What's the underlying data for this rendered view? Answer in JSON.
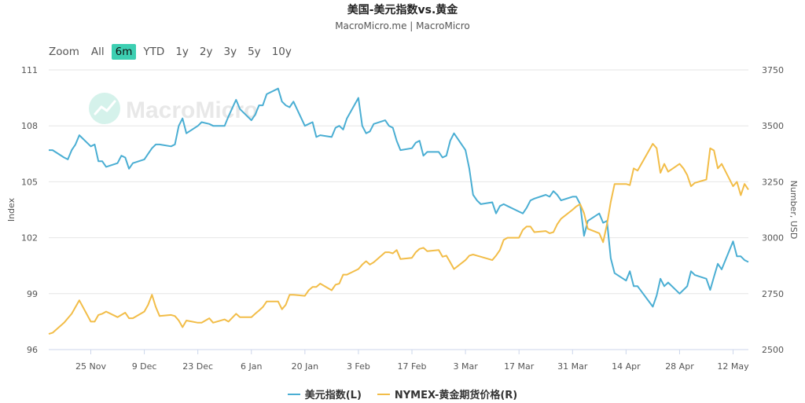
{
  "title": "美国-美元指数vs.黄金",
  "subtitle": "MacroMicro.me | MacroMicro",
  "zoom": {
    "label": "Zoom",
    "buttons": [
      "All",
      "6m",
      "YTD",
      "1y",
      "2y",
      "3y",
      "5y",
      "10y"
    ],
    "active": "6m"
  },
  "watermark": "MacroMicro",
  "colors": {
    "dxy": "#4aaed3",
    "gold": "#f2bd48",
    "active_zoom": "#3dcfb2"
  },
  "legend": {
    "dxy": "美元指数(L)",
    "gold": "NYMEX-黄金期货价格(R)"
  },
  "chart_data": {
    "type": "line",
    "title": "美国-美元指数vs.黄金",
    "subtitle": "MacroMicro.me | MacroMicro",
    "x_range": [
      "2024-11-14",
      "2025-05-16"
    ],
    "x_ticks": [
      "25 Nov",
      "9 Dec",
      "23 Dec",
      "6 Jan",
      "20 Jan",
      "3 Feb",
      "17 Feb",
      "3 Mar",
      "17 Mar",
      "31 Mar",
      "14 Apr",
      "28 Apr",
      "12 May"
    ],
    "y_left": {
      "label": "Index",
      "range": [
        96,
        111
      ],
      "ticks": [
        96,
        99,
        102,
        105,
        108,
        111
      ]
    },
    "y_right": {
      "label": "Number, USD",
      "range": [
        2500,
        3750
      ],
      "ticks": [
        2500,
        2750,
        3000,
        3250,
        3500,
        3750
      ]
    },
    "grid": true,
    "legend_position": "bottom",
    "series": [
      {
        "name": "美元指数(L)",
        "axis": "left",
        "points": [
          [
            "2024-11-14",
            106.7
          ],
          [
            "2024-11-15",
            106.7
          ],
          [
            "2024-11-18",
            106.3
          ],
          [
            "2024-11-19",
            106.2
          ],
          [
            "2024-11-20",
            106.7
          ],
          [
            "2024-11-21",
            107.0
          ],
          [
            "2024-11-22",
            107.5
          ],
          [
            "2024-11-25",
            106.9
          ],
          [
            "2024-11-26",
            107.0
          ],
          [
            "2024-11-27",
            106.1
          ],
          [
            "2024-11-28",
            106.1
          ],
          [
            "2024-11-29",
            105.8
          ],
          [
            "2024-12-02",
            106.0
          ],
          [
            "2024-12-03",
            106.4
          ],
          [
            "2024-12-04",
            106.3
          ],
          [
            "2024-12-05",
            105.7
          ],
          [
            "2024-12-06",
            106.0
          ],
          [
            "2024-12-09",
            106.2
          ],
          [
            "2024-12-10",
            106.5
          ],
          [
            "2024-12-11",
            106.8
          ],
          [
            "2024-12-12",
            107.0
          ],
          [
            "2024-12-13",
            107.0
          ],
          [
            "2024-12-16",
            106.9
          ],
          [
            "2024-12-17",
            107.0
          ],
          [
            "2024-12-18",
            108.0
          ],
          [
            "2024-12-19",
            108.4
          ],
          [
            "2024-12-20",
            107.6
          ],
          [
            "2024-12-23",
            108.0
          ],
          [
            "2024-12-24",
            108.2
          ],
          [
            "2024-12-26",
            108.1
          ],
          [
            "2024-12-27",
            108.0
          ],
          [
            "2024-12-30",
            108.0
          ],
          [
            "2024-12-31",
            108.5
          ],
          [
            "2025-01-02",
            109.4
          ],
          [
            "2025-01-03",
            108.9
          ],
          [
            "2025-01-06",
            108.3
          ],
          [
            "2025-01-07",
            108.6
          ],
          [
            "2025-01-08",
            109.1
          ],
          [
            "2025-01-09",
            109.1
          ],
          [
            "2025-01-10",
            109.7
          ],
          [
            "2025-01-13",
            110.0
          ],
          [
            "2025-01-14",
            109.3
          ],
          [
            "2025-01-15",
            109.1
          ],
          [
            "2025-01-16",
            109.0
          ],
          [
            "2025-01-17",
            109.3
          ],
          [
            "2025-01-20",
            108.0
          ],
          [
            "2025-01-21",
            108.1
          ],
          [
            "2025-01-22",
            108.2
          ],
          [
            "2025-01-23",
            107.4
          ],
          [
            "2025-01-24",
            107.5
          ],
          [
            "2025-01-27",
            107.4
          ],
          [
            "2025-01-28",
            107.9
          ],
          [
            "2025-01-29",
            108.0
          ],
          [
            "2025-01-30",
            107.8
          ],
          [
            "2025-01-31",
            108.4
          ],
          [
            "2025-02-03",
            109.5
          ],
          [
            "2025-02-04",
            108.0
          ],
          [
            "2025-02-05",
            107.6
          ],
          [
            "2025-02-06",
            107.7
          ],
          [
            "2025-02-07",
            108.1
          ],
          [
            "2025-02-10",
            108.3
          ],
          [
            "2025-02-11",
            108.0
          ],
          [
            "2025-02-12",
            107.9
          ],
          [
            "2025-02-13",
            107.2
          ],
          [
            "2025-02-14",
            106.7
          ],
          [
            "2025-02-17",
            106.8
          ],
          [
            "2025-02-18",
            107.1
          ],
          [
            "2025-02-19",
            107.2
          ],
          [
            "2025-02-20",
            106.4
          ],
          [
            "2025-02-21",
            106.6
          ],
          [
            "2025-02-24",
            106.6
          ],
          [
            "2025-02-25",
            106.3
          ],
          [
            "2025-02-26",
            106.4
          ],
          [
            "2025-02-27",
            107.2
          ],
          [
            "2025-02-28",
            107.6
          ],
          [
            "2025-03-03",
            106.7
          ],
          [
            "2025-03-04",
            105.7
          ],
          [
            "2025-03-05",
            104.3
          ],
          [
            "2025-03-06",
            104.0
          ],
          [
            "2025-03-07",
            103.8
          ],
          [
            "2025-03-10",
            103.9
          ],
          [
            "2025-03-11",
            103.3
          ],
          [
            "2025-03-12",
            103.7
          ],
          [
            "2025-03-13",
            103.8
          ],
          [
            "2025-03-14",
            103.7
          ],
          [
            "2025-03-17",
            103.4
          ],
          [
            "2025-03-18",
            103.3
          ],
          [
            "2025-03-19",
            103.6
          ],
          [
            "2025-03-20",
            104.0
          ],
          [
            "2025-03-21",
            104.1
          ],
          [
            "2025-03-24",
            104.3
          ],
          [
            "2025-03-25",
            104.2
          ],
          [
            "2025-03-26",
            104.5
          ],
          [
            "2025-03-27",
            104.3
          ],
          [
            "2025-03-28",
            104.0
          ],
          [
            "2025-03-31",
            104.2
          ],
          [
            "2025-04-01",
            104.2
          ],
          [
            "2025-04-02",
            103.8
          ],
          [
            "2025-04-03",
            102.1
          ],
          [
            "2025-04-04",
            102.9
          ],
          [
            "2025-04-07",
            103.3
          ],
          [
            "2025-04-08",
            102.8
          ],
          [
            "2025-04-09",
            102.9
          ],
          [
            "2025-04-10",
            100.9
          ],
          [
            "2025-04-11",
            100.1
          ],
          [
            "2025-04-14",
            99.7
          ],
          [
            "2025-04-15",
            100.2
          ],
          [
            "2025-04-16",
            99.4
          ],
          [
            "2025-04-17",
            99.4
          ],
          [
            "2025-04-21",
            98.3
          ],
          [
            "2025-04-22",
            98.9
          ],
          [
            "2025-04-23",
            99.8
          ],
          [
            "2025-04-24",
            99.4
          ],
          [
            "2025-04-25",
            99.6
          ],
          [
            "2025-04-28",
            99.0
          ],
          [
            "2025-04-29",
            99.2
          ],
          [
            "2025-04-30",
            99.4
          ],
          [
            "2025-05-01",
            100.2
          ],
          [
            "2025-05-02",
            100.0
          ],
          [
            "2025-05-05",
            99.8
          ],
          [
            "2025-05-06",
            99.2
          ],
          [
            "2025-05-07",
            99.9
          ],
          [
            "2025-05-08",
            100.6
          ],
          [
            "2025-05-09",
            100.3
          ],
          [
            "2025-05-12",
            101.8
          ],
          [
            "2025-05-13",
            101.0
          ],
          [
            "2025-05-14",
            101.0
          ],
          [
            "2025-05-15",
            100.8
          ],
          [
            "2025-05-16",
            100.7
          ]
        ]
      },
      {
        "name": "NYMEX-黄金期货价格(R)",
        "axis": "right",
        "points": [
          [
            "2024-11-14",
            2570
          ],
          [
            "2024-11-15",
            2575
          ],
          [
            "2024-11-18",
            2620
          ],
          [
            "2024-11-19",
            2640
          ],
          [
            "2024-11-20",
            2660
          ],
          [
            "2024-11-21",
            2690
          ],
          [
            "2024-11-22",
            2720
          ],
          [
            "2024-11-25",
            2625
          ],
          [
            "2024-11-26",
            2625
          ],
          [
            "2024-11-27",
            2655
          ],
          [
            "2024-11-28",
            2660
          ],
          [
            "2024-11-29",
            2670
          ],
          [
            "2024-12-02",
            2645
          ],
          [
            "2024-12-03",
            2655
          ],
          [
            "2024-12-04",
            2665
          ],
          [
            "2024-12-05",
            2640
          ],
          [
            "2024-12-06",
            2640
          ],
          [
            "2024-12-09",
            2670
          ],
          [
            "2024-12-10",
            2700
          ],
          [
            "2024-12-11",
            2745
          ],
          [
            "2024-12-12",
            2690
          ],
          [
            "2024-12-13",
            2650
          ],
          [
            "2024-12-16",
            2655
          ],
          [
            "2024-12-17",
            2650
          ],
          [
            "2024-12-18",
            2630
          ],
          [
            "2024-12-19",
            2600
          ],
          [
            "2024-12-20",
            2630
          ],
          [
            "2024-12-23",
            2620
          ],
          [
            "2024-12-24",
            2620
          ],
          [
            "2024-12-26",
            2640
          ],
          [
            "2024-12-27",
            2620
          ],
          [
            "2024-12-30",
            2635
          ],
          [
            "2024-12-31",
            2625
          ],
          [
            "2025-01-02",
            2660
          ],
          [
            "2025-01-03",
            2645
          ],
          [
            "2025-01-06",
            2645
          ],
          [
            "2025-01-07",
            2660
          ],
          [
            "2025-01-08",
            2675
          ],
          [
            "2025-01-09",
            2690
          ],
          [
            "2025-01-10",
            2715
          ],
          [
            "2025-01-13",
            2715
          ],
          [
            "2025-01-14",
            2680
          ],
          [
            "2025-01-15",
            2700
          ],
          [
            "2025-01-16",
            2745
          ],
          [
            "2025-01-17",
            2745
          ],
          [
            "2025-01-20",
            2740
          ],
          [
            "2025-01-21",
            2765
          ],
          [
            "2025-01-22",
            2780
          ],
          [
            "2025-01-23",
            2780
          ],
          [
            "2025-01-24",
            2795
          ],
          [
            "2025-01-27",
            2765
          ],
          [
            "2025-01-28",
            2790
          ],
          [
            "2025-01-29",
            2795
          ],
          [
            "2025-01-30",
            2835
          ],
          [
            "2025-01-31",
            2835
          ],
          [
            "2025-02-03",
            2860
          ],
          [
            "2025-02-04",
            2880
          ],
          [
            "2025-02-05",
            2895
          ],
          [
            "2025-02-06",
            2880
          ],
          [
            "2025-02-07",
            2890
          ],
          [
            "2025-02-10",
            2935
          ],
          [
            "2025-02-11",
            2935
          ],
          [
            "2025-02-12",
            2930
          ],
          [
            "2025-02-13",
            2945
          ],
          [
            "2025-02-14",
            2905
          ],
          [
            "2025-02-17",
            2910
          ],
          [
            "2025-02-18",
            2935
          ],
          [
            "2025-02-19",
            2950
          ],
          [
            "2025-02-20",
            2955
          ],
          [
            "2025-02-21",
            2940
          ],
          [
            "2025-02-24",
            2945
          ],
          [
            "2025-02-25",
            2915
          ],
          [
            "2025-02-26",
            2920
          ],
          [
            "2025-02-27",
            2890
          ],
          [
            "2025-02-28",
            2860
          ],
          [
            "2025-03-03",
            2900
          ],
          [
            "2025-03-04",
            2920
          ],
          [
            "2025-03-05",
            2925
          ],
          [
            "2025-03-06",
            2920
          ],
          [
            "2025-03-07",
            2915
          ],
          [
            "2025-03-10",
            2900
          ],
          [
            "2025-03-11",
            2920
          ],
          [
            "2025-03-12",
            2945
          ],
          [
            "2025-03-13",
            2990
          ],
          [
            "2025-03-14",
            3000
          ],
          [
            "2025-03-17",
            3000
          ],
          [
            "2025-03-18",
            3035
          ],
          [
            "2025-03-19",
            3050
          ],
          [
            "2025-03-20",
            3050
          ],
          [
            "2025-03-21",
            3025
          ],
          [
            "2025-03-24",
            3030
          ],
          [
            "2025-03-25",
            3020
          ],
          [
            "2025-03-26",
            3025
          ],
          [
            "2025-03-27",
            3060
          ],
          [
            "2025-03-28",
            3085
          ],
          [
            "2025-03-31",
            3125
          ],
          [
            "2025-04-01",
            3140
          ],
          [
            "2025-04-02",
            3150
          ],
          [
            "2025-04-03",
            3110
          ],
          [
            "2025-04-04",
            3040
          ],
          [
            "2025-04-07",
            3020
          ],
          [
            "2025-04-08",
            2980
          ],
          [
            "2025-04-09",
            3060
          ],
          [
            "2025-04-10",
            3160
          ],
          [
            "2025-04-11",
            3240
          ],
          [
            "2025-04-14",
            3240
          ],
          [
            "2025-04-15",
            3235
          ],
          [
            "2025-04-16",
            3310
          ],
          [
            "2025-04-17",
            3300
          ],
          [
            "2025-04-21",
            3420
          ],
          [
            "2025-04-22",
            3400
          ],
          [
            "2025-04-23",
            3290
          ],
          [
            "2025-04-24",
            3330
          ],
          [
            "2025-04-25",
            3295
          ],
          [
            "2025-04-28",
            3330
          ],
          [
            "2025-04-29",
            3310
          ],
          [
            "2025-04-30",
            3280
          ],
          [
            "2025-05-01",
            3230
          ],
          [
            "2025-05-02",
            3245
          ],
          [
            "2025-05-05",
            3260
          ],
          [
            "2025-05-06",
            3400
          ],
          [
            "2025-05-07",
            3390
          ],
          [
            "2025-05-08",
            3310
          ],
          [
            "2025-05-09",
            3330
          ],
          [
            "2025-05-12",
            3230
          ],
          [
            "2025-05-13",
            3250
          ],
          [
            "2025-05-14",
            3190
          ],
          [
            "2025-05-15",
            3240
          ],
          [
            "2025-05-16",
            3215
          ]
        ]
      }
    ]
  }
}
